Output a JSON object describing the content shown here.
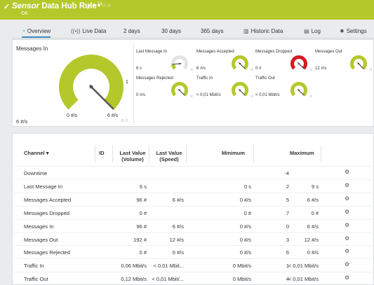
{
  "header": {
    "check": "✓",
    "sensor_word": "Sensor",
    "name": "Data Hub Rule",
    "superscript": "13",
    "stars": "★★★☆☆",
    "status": "OK"
  },
  "tabs": [
    {
      "icon": "overview-icon",
      "label": "Overview",
      "active": true
    },
    {
      "icon": "live-data-icon",
      "label": "Live Data"
    },
    {
      "label": "2  days"
    },
    {
      "label": "30  days"
    },
    {
      "label": "365  days"
    },
    {
      "icon": "historic-data-icon",
      "label": "Historic Data"
    },
    {
      "icon": "log-icon",
      "label": "Log"
    },
    {
      "icon": "settings-icon",
      "label": "Settings"
    }
  ],
  "primary_gauge": {
    "title": "Messages In",
    "value": "6 #/s",
    "min_label": "0 #/s",
    "max_label": "6 #/s",
    "side_marker": "1",
    "level": 1.0,
    "color": "#b4c82b"
  },
  "mini_gauges": [
    {
      "label": "Last Message In",
      "value": "6 s",
      "level": 0.15,
      "color": "#b4c82b"
    },
    {
      "label": "Messages Accepted",
      "value": "6 #/s",
      "level": 1.0,
      "color": "#b4c82b"
    },
    {
      "label": "Messages Dropped",
      "value": "0 #",
      "level": 1.0,
      "color": "#d71920"
    },
    {
      "label": "Messages Out",
      "value": "12 #/s",
      "level": 1.0,
      "color": "#b4c82b"
    },
    {
      "label": "Messages Rejected",
      "value": "0 #/s",
      "level": 1.0,
      "color": "#b4c82b"
    },
    {
      "label": "Traffic In",
      "value": "< 0,01 Mbit/s",
      "level": 1.0,
      "color": "#b4c82b"
    },
    {
      "label": "Traffic Out",
      "value": "< 0,01 Mbit/s",
      "level": 1.0,
      "color": "#b4c82b"
    }
  ],
  "table": {
    "headers": {
      "channel": "Channel",
      "id": "ID",
      "last_volume_1": "Last Value",
      "last_volume_2": "(Volume)",
      "last_speed_1": "Last Value",
      "last_speed_2": "(Speed)",
      "minimum": "Minimum",
      "maximum": "Maximum"
    },
    "rows": [
      {
        "channel": "Downtime",
        "id": "-4",
        "volume": "",
        "speed": "",
        "min": "",
        "max": ""
      },
      {
        "channel": "Last Message In",
        "id": "2",
        "volume": "6 s",
        "speed": "",
        "min": "0 s",
        "max": "9 s"
      },
      {
        "channel": "Messages Accepted",
        "id": "5",
        "volume": "96 #",
        "speed": "6 #/s",
        "min": "0 #/s",
        "max": "6 #/s"
      },
      {
        "channel": "Messages Dropped",
        "id": "7",
        "volume": "0 #",
        "speed": "",
        "min": "0 #",
        "max": "0 #"
      },
      {
        "channel": "Messages In",
        "id": "0",
        "volume": "96 #",
        "speed": "6 #/s",
        "min": "0 #/s",
        "max": "6 #/s"
      },
      {
        "channel": "Messages Out",
        "id": "3",
        "volume": "192 #",
        "speed": "12 #/s",
        "min": "0 #/s",
        "max": "12 #/s"
      },
      {
        "channel": "Messages Rejected",
        "id": "6",
        "volume": "0 #",
        "speed": "0 #/s",
        "min": "0 #/s",
        "max": "0 #/s"
      },
      {
        "channel": "Traffic In",
        "id": "1",
        "volume": "0,06 Mbit/s",
        "speed": "< 0,01 Mbit...",
        "min": "0 Mbit/s",
        "max": "< 0,01 Mbit/s"
      },
      {
        "channel": "Traffic Out",
        "id": "4",
        "volume": "0,12 Mbit/s",
        "speed": "< 0,01 Mbit/...",
        "min": "0 Mbit/s",
        "max": "< 0,01 Mbit/s"
      }
    ]
  }
}
